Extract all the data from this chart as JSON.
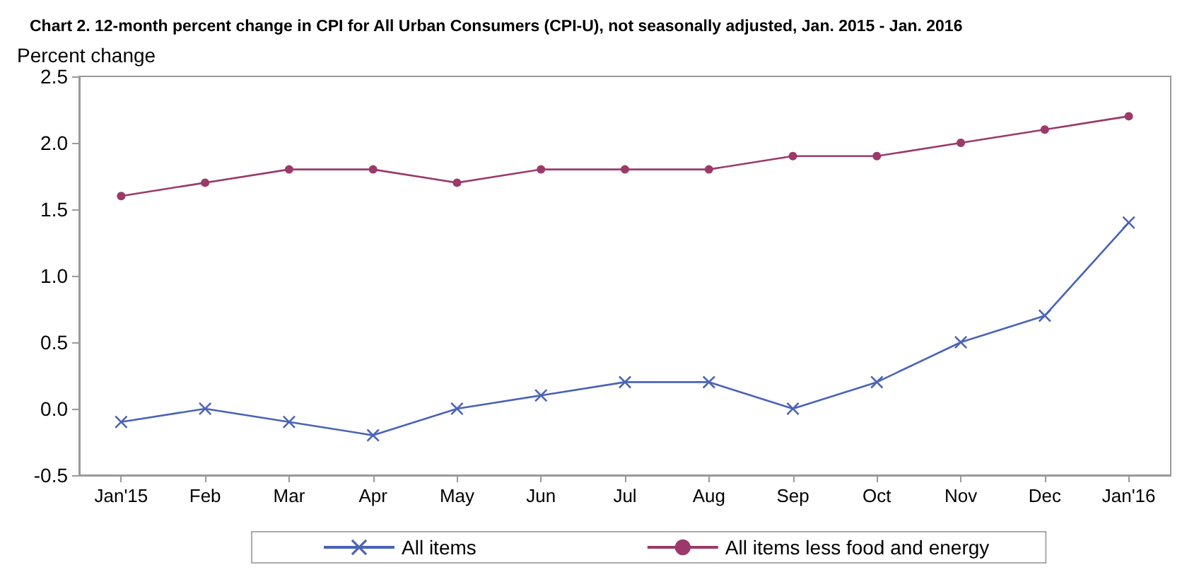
{
  "chart_data": {
    "type": "line",
    "title": "Chart 2. 12-month percent change in CPI for All Urban Consumers (CPI-U), not seasonally adjusted, Jan. 2015 - Jan. 2016",
    "ylabel": "Percent change",
    "categories": [
      "Jan'15",
      "Feb",
      "Mar",
      "Apr",
      "May",
      "Jun",
      "Jul",
      "Aug",
      "Sep",
      "Oct",
      "Nov",
      "Dec",
      "Jan'16"
    ],
    "series": [
      {
        "name": "All items",
        "color": "#4a63b8",
        "marker": "cross",
        "values": [
          -0.1,
          0.0,
          -0.1,
          -0.2,
          0.0,
          0.1,
          0.2,
          0.2,
          0.0,
          0.2,
          0.5,
          0.7,
          1.4
        ]
      },
      {
        "name": "All items less food and energy",
        "color": "#9b3a6a",
        "marker": "circle",
        "values": [
          1.6,
          1.7,
          1.8,
          1.8,
          1.7,
          1.8,
          1.8,
          1.8,
          1.9,
          1.9,
          2.0,
          2.1,
          2.2
        ]
      }
    ],
    "ylim": [
      -0.5,
      2.5
    ],
    "yticks": [
      {
        "value": -0.5,
        "label": "-0.5"
      },
      {
        "value": 0,
        "label": "0.0"
      },
      {
        "value": 0.5,
        "label": "0.5"
      },
      {
        "value": 1,
        "label": "1.0"
      },
      {
        "value": 1.5,
        "label": "1.5"
      },
      {
        "value": 2,
        "label": "2.0"
      },
      {
        "value": 2.5,
        "label": "2.5"
      }
    ],
    "grid": false,
    "legend": "bottom"
  }
}
